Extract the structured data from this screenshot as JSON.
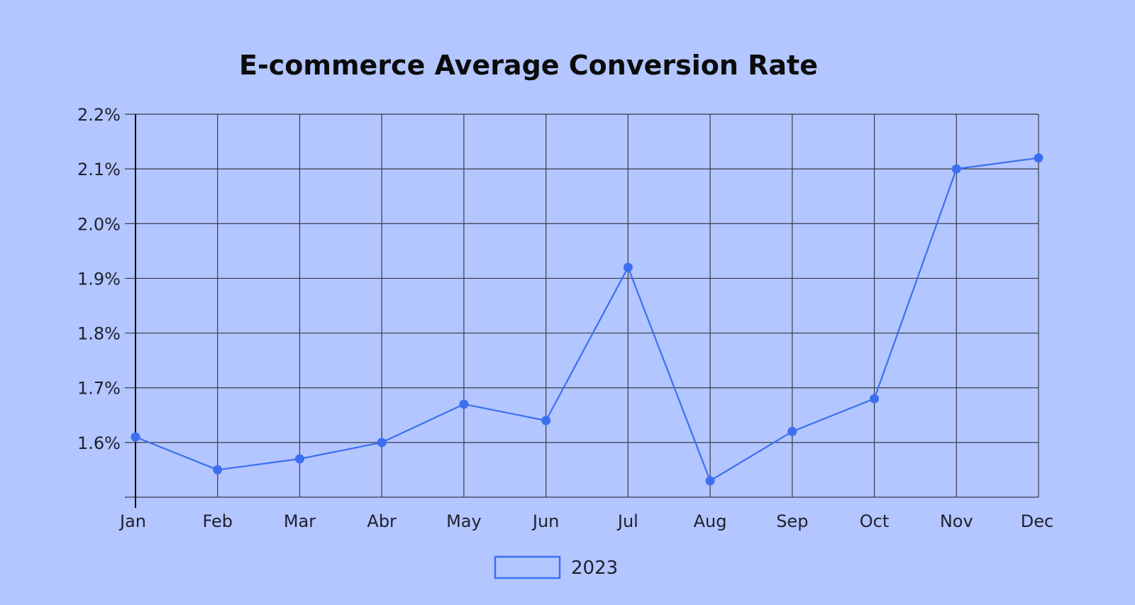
{
  "page": {
    "background": "#b3c6ff"
  },
  "chart_data": {
    "type": "line",
    "title": "E-commerce Average Conversion Rate",
    "xlabel": "",
    "ylabel": "",
    "categories": [
      "Jan",
      "Feb",
      "Mar",
      "Abr",
      "May",
      "Jun",
      "Jul",
      "Aug",
      "Sep",
      "Oct",
      "Nov",
      "Dec"
    ],
    "series": [
      {
        "name": "2023",
        "color": "#3c6ff0",
        "values": [
          1.61,
          1.55,
          1.57,
          1.6,
          1.67,
          1.64,
          1.92,
          1.53,
          1.62,
          1.68,
          2.1,
          2.12
        ]
      }
    ],
    "ylim": [
      1.5,
      2.2
    ],
    "yticks": [
      1.6,
      1.7,
      1.8,
      1.9,
      2.0,
      2.1,
      2.2
    ],
    "ytick_labels": [
      "1.6%",
      "1.7%",
      "1.8%",
      "1.9%",
      "2.0%",
      "2.1%",
      "2.2%"
    ],
    "grid": true,
    "legend_position": "bottom-center",
    "grid_color": "#3a3a4a",
    "axis_color": "#000000"
  }
}
